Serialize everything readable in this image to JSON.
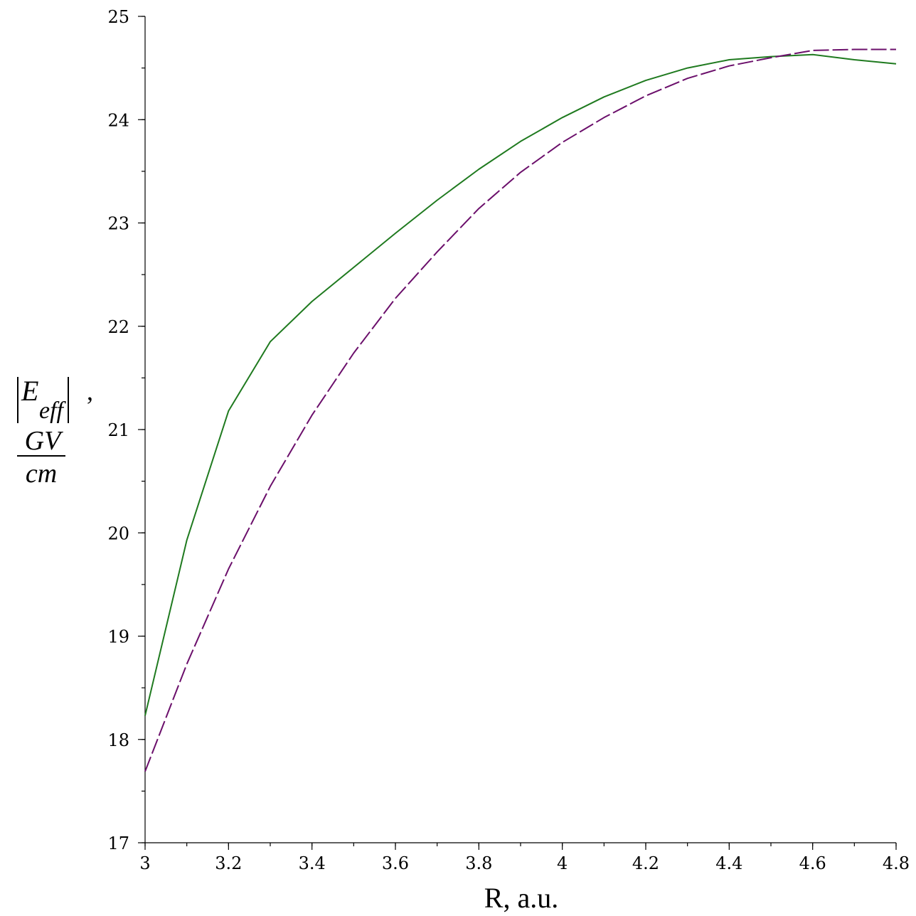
{
  "chart_data": {
    "type": "line",
    "xlabel": "R, a.u.",
    "ylabel": {
      "symbol": "E",
      "subscript": "eff",
      "separator": ",",
      "unit_numerator": "GV",
      "unit_denominator": "cm"
    },
    "xlim": [
      3,
      4.8
    ],
    "ylim": [
      17,
      25
    ],
    "x_ticks": [
      "3",
      "3.2",
      "3.4",
      "3.6",
      "3.8",
      "4",
      "4.2",
      "4.4",
      "4.6",
      "4.8"
    ],
    "y_ticks": [
      "17",
      "18",
      "19",
      "20",
      "21",
      "22",
      "23",
      "24",
      "25"
    ],
    "grid": false,
    "series": [
      {
        "color": "#1f7a1f",
        "dash": "solid",
        "x": [
          3.0,
          3.1,
          3.2,
          3.3,
          3.4,
          3.5,
          3.6,
          3.7,
          3.8,
          3.9,
          4.0,
          4.1,
          4.2,
          4.3,
          4.4,
          4.5,
          4.6,
          4.7,
          4.8
        ],
        "y": [
          18.23,
          19.93,
          21.18,
          21.85,
          22.24,
          22.57,
          22.9,
          23.22,
          23.52,
          23.79,
          24.02,
          24.22,
          24.38,
          24.5,
          24.58,
          24.61,
          24.63,
          24.58,
          24.54
        ]
      },
      {
        "color": "#6b0f6b",
        "dash": "dashed",
        "x": [
          3.0,
          3.1,
          3.2,
          3.3,
          3.4,
          3.5,
          3.6,
          3.7,
          3.8,
          3.9,
          4.0,
          4.1,
          4.2,
          4.3,
          4.4,
          4.5,
          4.6,
          4.7,
          4.8
        ],
        "y": [
          17.69,
          18.73,
          19.65,
          20.45,
          21.14,
          21.74,
          22.27,
          22.72,
          23.14,
          23.49,
          23.78,
          24.02,
          24.23,
          24.4,
          24.52,
          24.6,
          24.67,
          24.68,
          24.68
        ]
      }
    ]
  }
}
